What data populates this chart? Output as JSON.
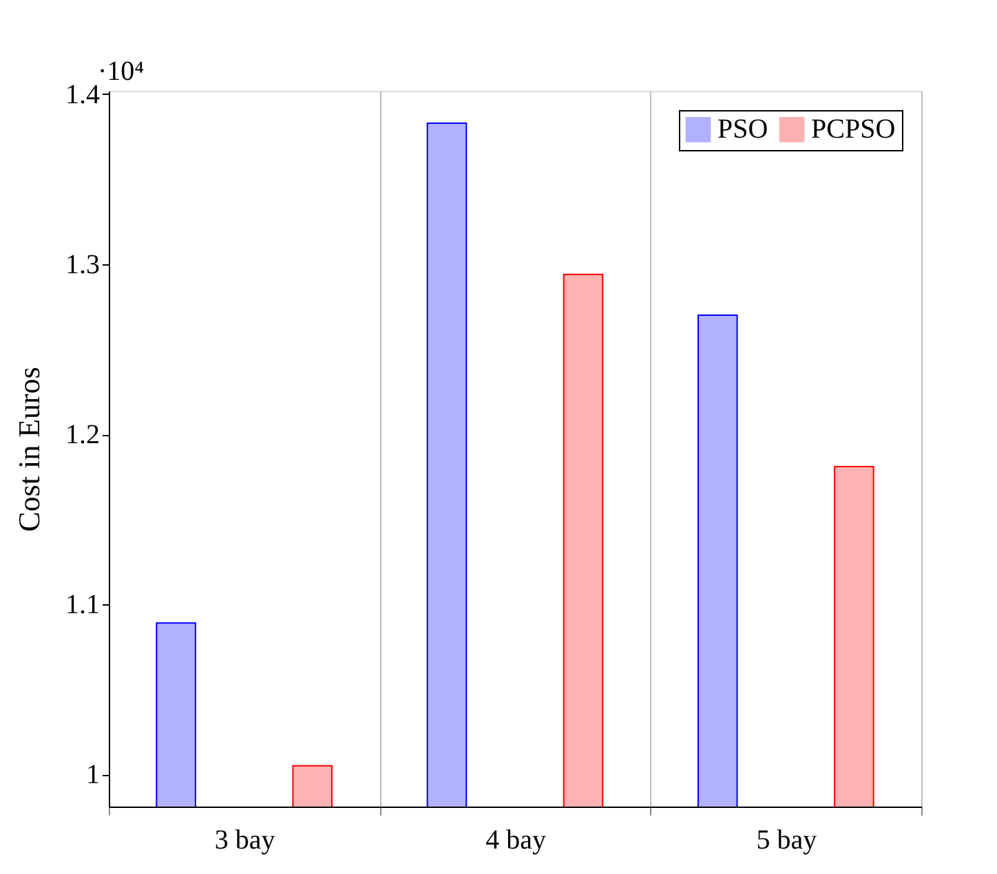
{
  "chart_data": {
    "type": "bar",
    "ylabel": "Cost in Euros",
    "annotations": [
      "·10⁴"
    ],
    "categories": [
      "3 bay",
      "4 bay",
      "5 bay"
    ],
    "series": [
      {
        "name": "PSO",
        "color": "#0000ff",
        "values": [
          1.089,
          1.383,
          1.27
        ]
      },
      {
        "name": "PCPSO",
        "color": "#ff0000",
        "values": [
          1.005,
          1.294,
          1.181
        ]
      }
    ],
    "ylim": [
      0.981,
      1.402
    ],
    "yticks": [
      1,
      1.1,
      1.2,
      1.3,
      1.4
    ],
    "grid": "x",
    "legend": "top right"
  }
}
